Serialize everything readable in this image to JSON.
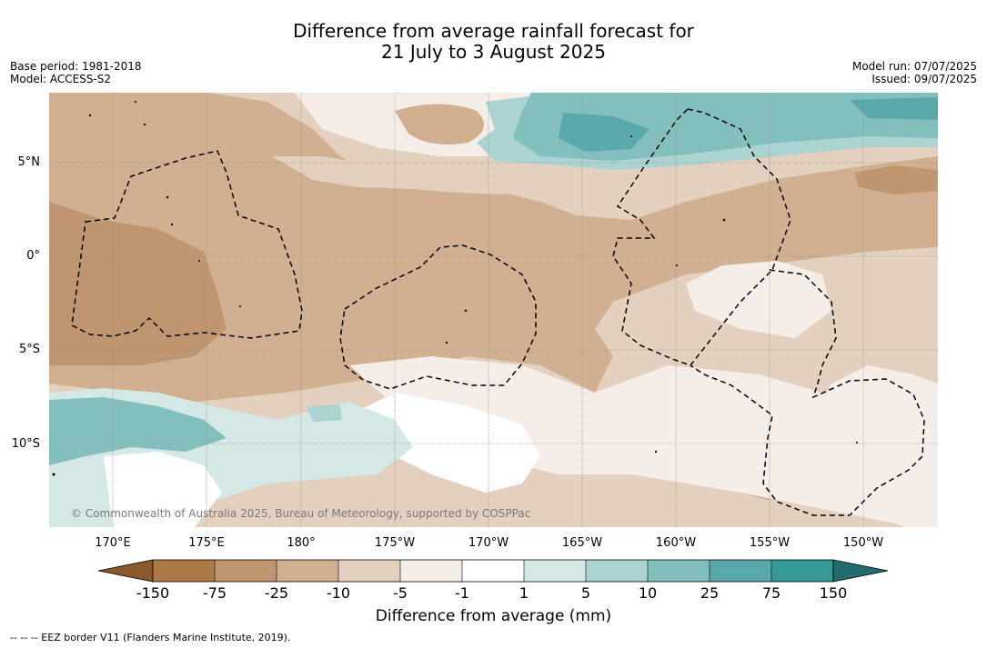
{
  "title": {
    "line1": "Difference from average rainfall forecast for",
    "line2": "21 July to 3 August 2025"
  },
  "meta_left": {
    "base_period": "Base period: 1981-2018",
    "model": "Model: ACCESS-S2"
  },
  "meta_right": {
    "model_run": "Model run: 07/07/2025",
    "issued": "Issued: 09/07/2025"
  },
  "map": {
    "lon_labels": [
      "170°E",
      "175°E",
      "180°",
      "175°W",
      "170°W",
      "165°W",
      "160°W",
      "155°W",
      "150°W"
    ],
    "lat_labels": [
      "5°N",
      "0°",
      "5°S",
      "10°S"
    ],
    "copyright": "© Commonwealth of Australia 2025, Bureau of Meteorology, supported by COSPPac",
    "gridlines": true
  },
  "colorbar": {
    "ticks": [
      "-150",
      "-75",
      "-25",
      "-10",
      "-5",
      "-1",
      "1",
      "5",
      "10",
      "25",
      "75",
      "150"
    ],
    "colors": {
      "under": "#8a5a2c",
      "b1": "#ac7a45",
      "b2": "#bf9670",
      "b3": "#d0b091",
      "b4": "#e3d0bf",
      "b5": "#f4ede8",
      "b6": "#ffffff",
      "b7": "#d4e8e6",
      "b8": "#abd3d1",
      "b9": "#83bfbd",
      "b10": "#5aa9aa",
      "b11": "#359996",
      "over": "#226c6d"
    },
    "title": "Difference from average (mm)"
  },
  "footnote": "--  --  -- EEZ border V11 (Flanders Marine Institute, 2019)."
}
